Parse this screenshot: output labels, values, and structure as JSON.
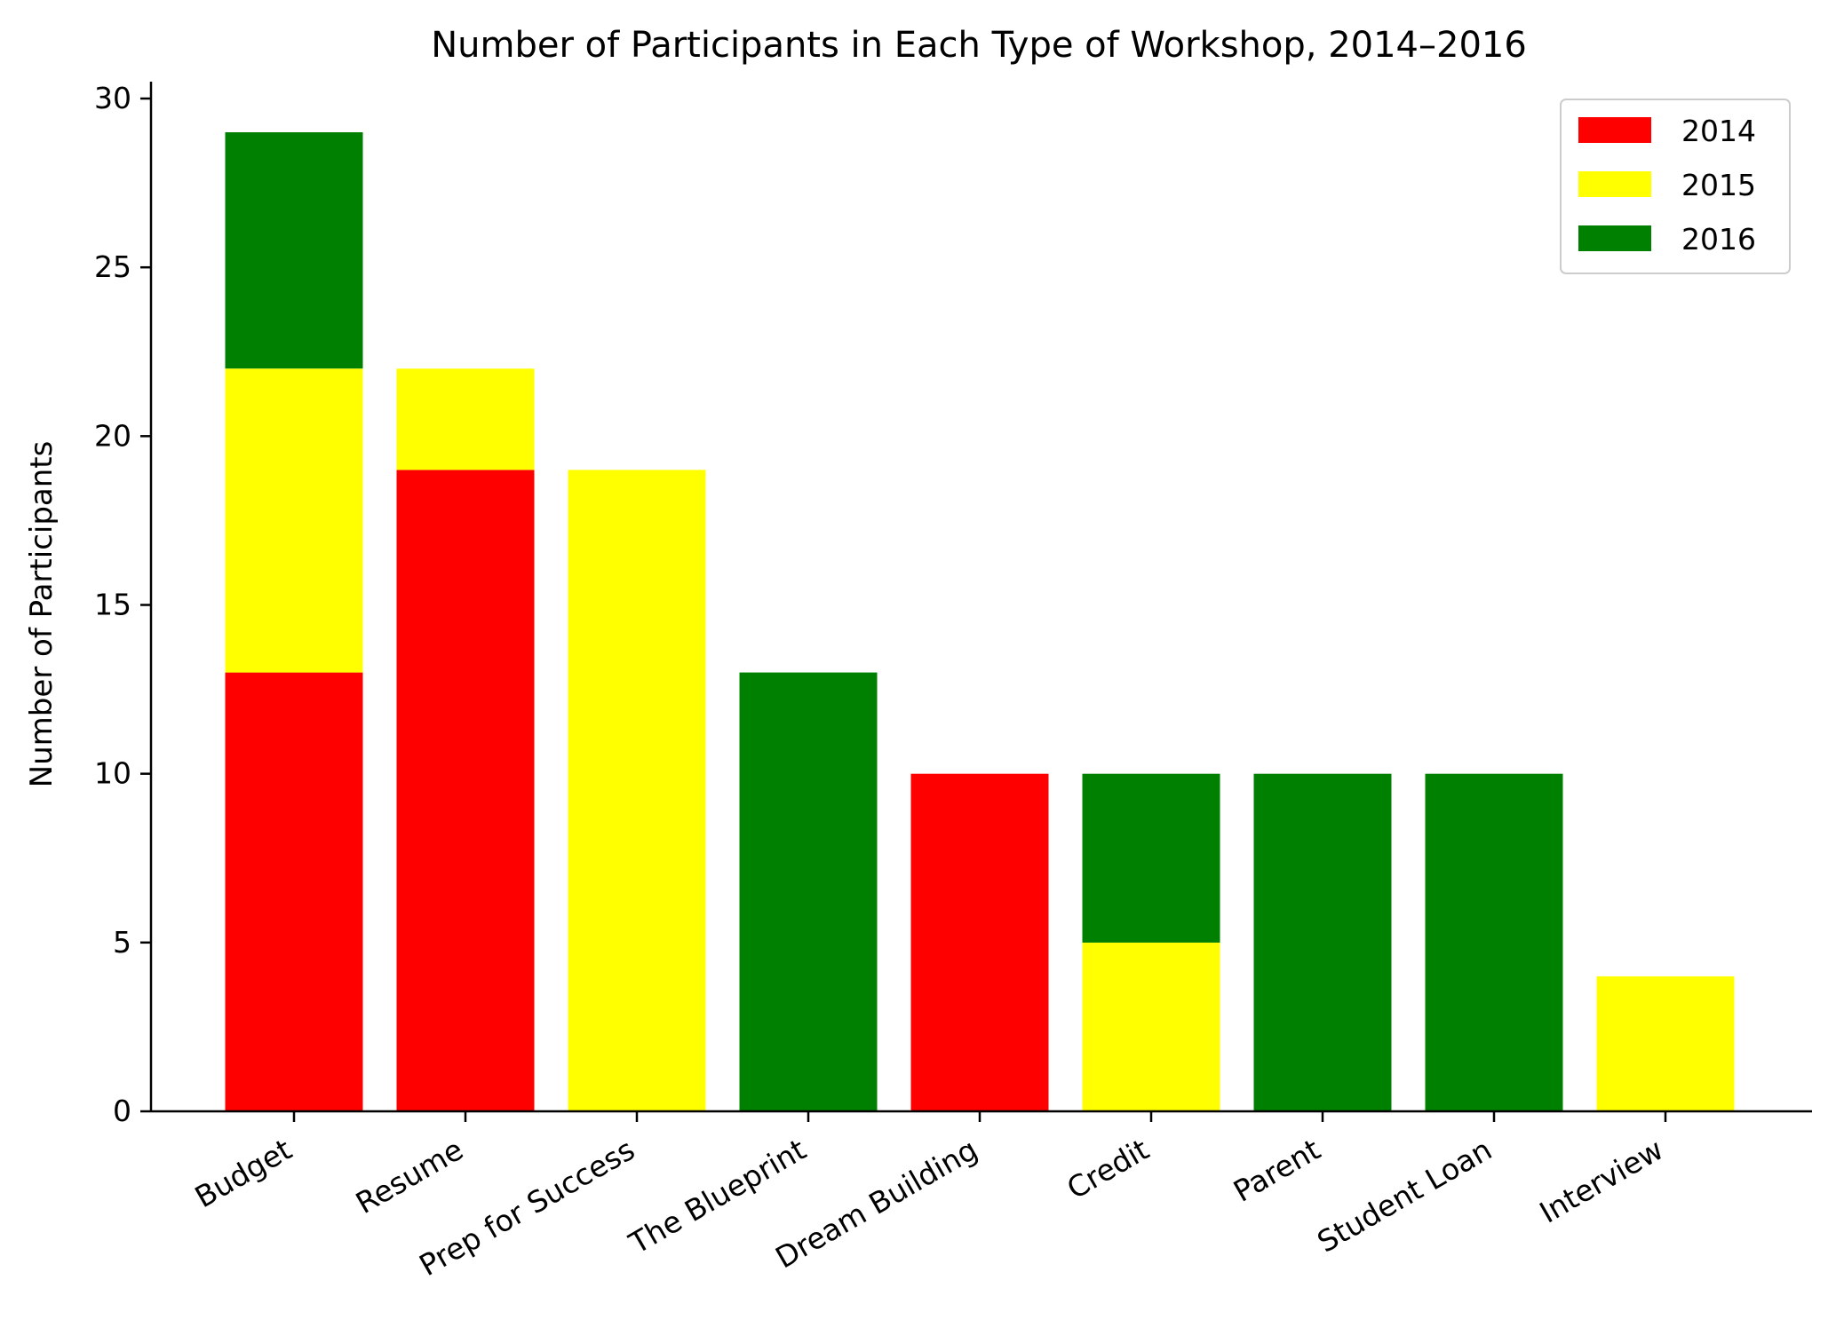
{
  "chart_data": {
    "type": "bar",
    "stacked": true,
    "title": "Number of Participants in Each Type of Workshop, 2014–2016",
    "xlabel": "",
    "ylabel": "Number of Participants",
    "categories": [
      "Budget",
      "Resume",
      "Prep for Success",
      "The Blueprint",
      "Dream Building",
      "Credit",
      "Parent",
      "Student Loan",
      "Interview"
    ],
    "series": [
      {
        "name": "2014",
        "color": "#ff0000",
        "values": [
          13,
          19,
          0,
          0,
          10,
          0,
          0,
          0,
          0
        ]
      },
      {
        "name": "2015",
        "color": "#ffff00",
        "values": [
          9,
          3,
          19,
          0,
          0,
          5,
          0,
          0,
          4
        ]
      },
      {
        "name": "2016",
        "color": "#008000",
        "values": [
          7,
          0,
          0,
          13,
          0,
          5,
          10,
          10,
          0
        ]
      }
    ],
    "ylim": [
      0,
      30.5
    ],
    "yticks": [
      0,
      5,
      10,
      15,
      20,
      25,
      30
    ],
    "grid": false,
    "legend_position": "top-right"
  }
}
